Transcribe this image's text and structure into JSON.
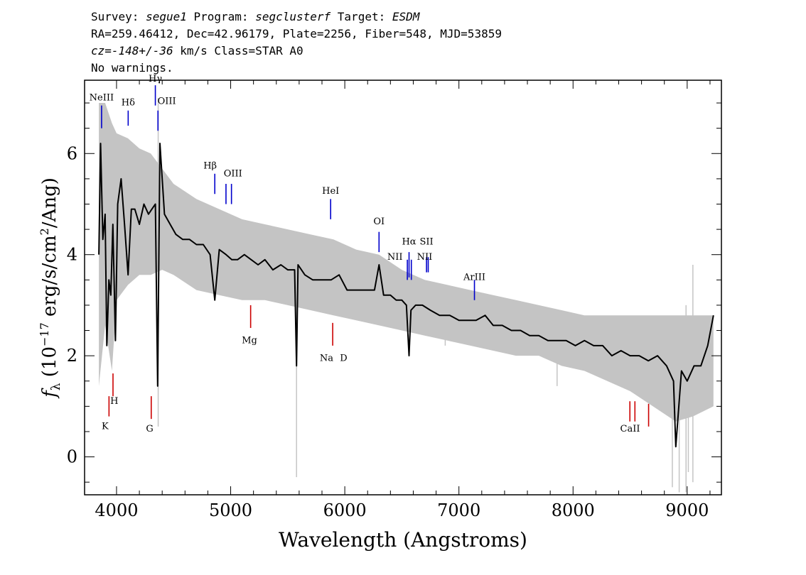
{
  "header": {
    "line1": {
      "survey_label": "Survey: ",
      "survey": "segue1",
      "program_label": " Program: ",
      "program": "segclusterf",
      "target_label": " Target: ",
      "target": "ESDM"
    },
    "line2": "RA=259.46412, Dec=42.96179, Plate=2256, Fiber=548, MJD=53859",
    "line3": {
      "cz": "cz=-148+/-36",
      "rest": " km/s Class=STAR A0"
    },
    "line4": "No warnings."
  },
  "colors": {
    "spectrum": "#000000",
    "error_band": "#c4c4c4",
    "emission_line": "#0000cc",
    "absorption_line": "#cc0000",
    "frame": "#000000"
  },
  "chart_data": {
    "type": "line",
    "title": "",
    "xlabel": "Wavelength (Angstroms)",
    "ylabel": "f_λ (10^-17 erg/s/cm^2/Ang)",
    "ylabel_parts": {
      "f": "f",
      "sub": "λ",
      "pre": " (10",
      "exp1": "−17",
      "mid": " erg/s/cm",
      "exp2": "2",
      "post": "/Ang)"
    },
    "xlim": [
      3720,
      9300
    ],
    "ylim": [
      -0.75,
      7.45
    ],
    "x_ticks": [
      4000,
      5000,
      6000,
      7000,
      8000,
      9000
    ],
    "x_tick_labels": [
      "4000",
      "5000",
      "6000",
      "7000",
      "8000",
      "9000"
    ],
    "y_ticks": [
      0,
      2,
      4,
      6
    ],
    "y_tick_labels": [
      "0",
      "2",
      "4",
      "6"
    ],
    "grid": false,
    "series": [
      {
        "role": "flux",
        "x": [
          3845,
          3860,
          3880,
          3900,
          3915,
          3933,
          3950,
          3968,
          3990,
          4010,
          4040,
          4070,
          4101,
          4130,
          4160,
          4200,
          4240,
          4280,
          4310,
          4340,
          4360,
          4380,
          4420,
          4470,
          4520,
          4580,
          4640,
          4700,
          4760,
          4820,
          4861,
          4900,
          4960,
          5010,
          5060,
          5120,
          5180,
          5240,
          5300,
          5370,
          5440,
          5500,
          5560,
          5577,
          5590,
          5650,
          5720,
          5800,
          5880,
          5950,
          6020,
          6100,
          6180,
          6260,
          6300,
          6340,
          6400,
          6450,
          6500,
          6540,
          6563,
          6580,
          6620,
          6680,
          6750,
          6830,
          6920,
          7000,
          7080,
          7150,
          7230,
          7300,
          7380,
          7460,
          7540,
          7620,
          7700,
          7780,
          7860,
          7940,
          8020,
          8100,
          8180,
          8260,
          8340,
          8420,
          8500,
          8580,
          8660,
          8740,
          8820,
          8880,
          8900,
          8950,
          9000,
          9060,
          9120,
          9180,
          9230
        ],
        "y": [
          4.0,
          6.2,
          4.3,
          4.8,
          2.2,
          3.5,
          3.2,
          4.6,
          2.3,
          5.0,
          5.5,
          4.6,
          3.6,
          4.9,
          4.9,
          4.6,
          5.0,
          4.8,
          4.9,
          5.0,
          1.4,
          6.2,
          4.8,
          4.6,
          4.4,
          4.3,
          4.3,
          4.2,
          4.2,
          4.0,
          3.1,
          4.1,
          4.0,
          3.9,
          3.9,
          4.0,
          3.9,
          3.8,
          3.9,
          3.7,
          3.8,
          3.7,
          3.7,
          1.8,
          3.8,
          3.6,
          3.5,
          3.5,
          3.5,
          3.6,
          3.3,
          3.3,
          3.3,
          3.3,
          3.8,
          3.2,
          3.2,
          3.1,
          3.1,
          3.0,
          2.0,
          2.9,
          3.0,
          3.0,
          2.9,
          2.8,
          2.8,
          2.7,
          2.7,
          2.7,
          2.8,
          2.6,
          2.6,
          2.5,
          2.5,
          2.4,
          2.4,
          2.3,
          2.3,
          2.3,
          2.2,
          2.3,
          2.2,
          2.2,
          2.0,
          2.1,
          2.0,
          2.0,
          1.9,
          2.0,
          1.8,
          1.5,
          0.2,
          1.7,
          1.5,
          1.8,
          1.8,
          2.2,
          2.8
        ]
      },
      {
        "role": "error_band",
        "x": [
          3845,
          3900,
          3960,
          4000,
          4100,
          4200,
          4300,
          4400,
          4500,
          4700,
          4900,
          5100,
          5300,
          5500,
          5700,
          5900,
          6100,
          6300,
          6500,
          6700,
          6900,
          7100,
          7300,
          7500,
          7700,
          7900,
          8100,
          8300,
          8500,
          8700,
          8900,
          9050,
          9230
        ],
        "upper": [
          7.0,
          7.0,
          6.6,
          6.4,
          6.3,
          6.1,
          6.0,
          5.7,
          5.4,
          5.1,
          4.9,
          4.7,
          4.6,
          4.5,
          4.4,
          4.3,
          4.1,
          4.0,
          3.7,
          3.5,
          3.4,
          3.3,
          3.2,
          3.1,
          3.0,
          2.9,
          2.8,
          2.8,
          2.8,
          2.8,
          2.8,
          2.8,
          2.8
        ],
        "lower": [
          1.4,
          2.6,
          1.7,
          3.1,
          3.4,
          3.6,
          3.6,
          3.7,
          3.6,
          3.3,
          3.2,
          3.1,
          3.1,
          3.0,
          2.9,
          2.8,
          2.7,
          2.6,
          2.5,
          2.4,
          2.3,
          2.2,
          2.1,
          2.0,
          2.0,
          1.8,
          1.7,
          1.5,
          1.3,
          1.0,
          0.7,
          0.8,
          1.0
        ],
        "spikes": [
          {
            "x": 5577,
            "y1": -0.4,
            "y2": 4.0
          },
          {
            "x": 8870,
            "y1": -0.6,
            "y2": 2.5
          },
          {
            "x": 8930,
            "y1": -0.7,
            "y2": 2.2
          },
          {
            "x": 8990,
            "y1": -0.7,
            "y2": 3.0
          },
          {
            "x": 9010,
            "y1": -0.3,
            "y2": 2.1
          },
          {
            "x": 9050,
            "y1": -0.5,
            "y2": 3.8
          },
          {
            "x": 6880,
            "y1": 2.2,
            "y2": 3.3
          },
          {
            "x": 7860,
            "y1": 1.4,
            "y2": 2.9
          },
          {
            "x": 4365,
            "y1": 0.6,
            "y2": 7.1
          }
        ]
      }
    ],
    "annotations": [
      {
        "label": "NeIII",
        "kind": "emission",
        "x": 3869,
        "label_x": 3869,
        "label_y": 7.05,
        "y1": 6.5,
        "y2": 6.95
      },
      {
        "label": "Hδ",
        "kind": "emission",
        "x": 4102,
        "label_x": 4102,
        "label_y": 6.95,
        "y1": 6.55,
        "y2": 6.85
      },
      {
        "label": "Hγ",
        "kind": "emission",
        "x": 4340,
        "label_x": 4340,
        "label_y": 7.42,
        "y1": 6.95,
        "y2": 7.35
      },
      {
        "label": "OIII",
        "kind": "emission",
        "x": 4363,
        "label_x": 4440,
        "label_y": 6.98,
        "y1": 6.45,
        "y2": 6.85
      },
      {
        "label": "Hβ",
        "kind": "emission",
        "x": 4861,
        "label_x": 4820,
        "label_y": 5.7,
        "y1": 5.2,
        "y2": 5.6
      },
      {
        "label": "OIII",
        "kind": "emission",
        "x": 4959,
        "label_x": 5020,
        "label_y": 5.55,
        "y1": 5.0,
        "y2": 5.4
      },
      {
        "label": "",
        "kind": "emission",
        "x": 5007,
        "label_x": 5007,
        "label_y": 0,
        "y1": 5.0,
        "y2": 5.4
      },
      {
        "label": "HeI",
        "kind": "emission",
        "x": 5876,
        "label_x": 5876,
        "label_y": 5.2,
        "y1": 4.7,
        "y2": 5.1
      },
      {
        "label": "OI",
        "kind": "emission",
        "x": 6300,
        "label_x": 6300,
        "label_y": 4.6,
        "y1": 4.05,
        "y2": 4.45
      },
      {
        "label": "NII",
        "kind": "emission",
        "x": 6548,
        "label_x": 6440,
        "label_y": 3.9,
        "y1": 3.5,
        "y2": 3.9
      },
      {
        "label": "Hα",
        "kind": "emission",
        "x": 6563,
        "label_x": 6563,
        "label_y": 4.2,
        "y1": 3.55,
        "y2": 4.05
      },
      {
        "label": "",
        "kind": "emission",
        "x": 6583,
        "label_x": 6583,
        "label_y": 0,
        "y1": 3.5,
        "y2": 3.9
      },
      {
        "label": "SII",
        "kind": "emission",
        "x": 6716,
        "label_x": 6716,
        "label_y": 4.2,
        "y1": 3.65,
        "y2": 3.95
      },
      {
        "label": "NII",
        "kind": "emission",
        "x": 6731,
        "label_x": 6700,
        "label_y": 3.9,
        "y1": 3.65,
        "y2": 3.95
      },
      {
        "label": "ArIII",
        "kind": "emission",
        "x": 7136,
        "label_x": 7136,
        "label_y": 3.5,
        "y1": 3.1,
        "y2": 3.5
      },
      {
        "label": "K",
        "kind": "absorption",
        "x": 3934,
        "label_x": 3900,
        "label_y": 0.55,
        "y1": 0.8,
        "y2": 1.2
      },
      {
        "label": "H",
        "kind": "absorption",
        "x": 3969,
        "label_x": 3980,
        "label_y": 1.05,
        "y1": 1.2,
        "y2": 1.65
      },
      {
        "label": "G",
        "kind": "absorption",
        "x": 4304,
        "label_x": 4290,
        "label_y": 0.5,
        "y1": 0.75,
        "y2": 1.2
      },
      {
        "label": "Mg",
        "kind": "absorption",
        "x": 5175,
        "label_x": 5165,
        "label_y": 2.25,
        "y1": 2.55,
        "y2": 3.0
      },
      {
        "label": "Na",
        "kind": "absorption",
        "x": 5894,
        "label_x": 5840,
        "label_y": 1.9,
        "y1": 2.2,
        "y2": 2.65
      },
      {
        "label": "D",
        "kind": "absorption",
        "x": 5894,
        "label_x": 5990,
        "label_y": 1.9,
        "y1": 2.2,
        "y2": 2.2
      },
      {
        "label": "CaII",
        "kind": "absorption",
        "x": 8498,
        "label_x": 8500,
        "label_y": 0.5,
        "y1": 0.7,
        "y2": 1.1
      },
      {
        "label": "",
        "kind": "absorption",
        "x": 8542,
        "label_x": 8542,
        "label_y": 0,
        "y1": 0.7,
        "y2": 1.1
      },
      {
        "label": "",
        "kind": "absorption",
        "x": 8662,
        "label_x": 8662,
        "label_y": 0,
        "y1": 0.6,
        "y2": 1.05
      }
    ]
  }
}
